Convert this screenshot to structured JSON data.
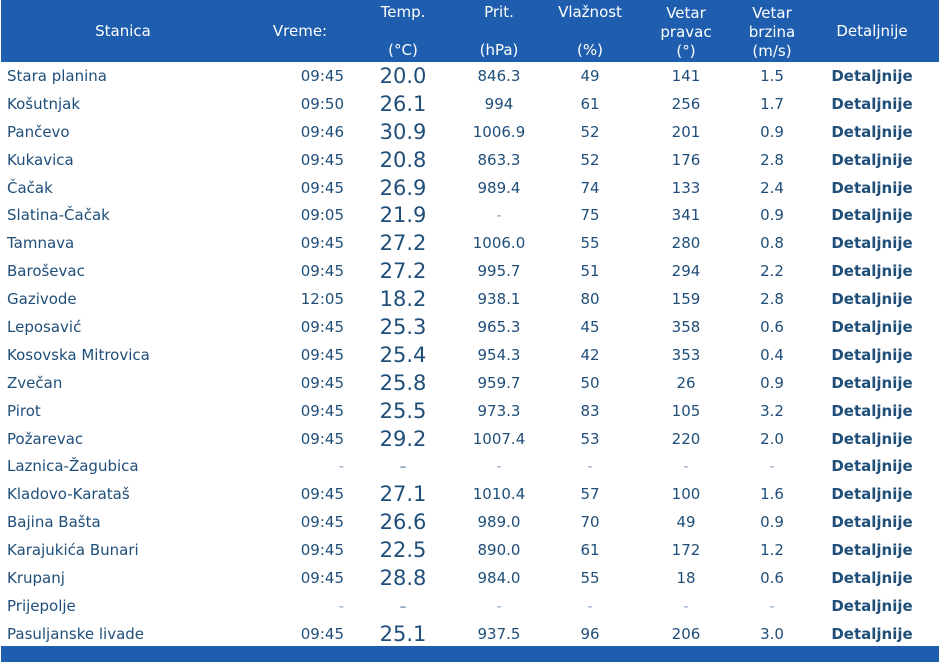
{
  "header": {
    "station": "Stanica",
    "time": "Vreme:",
    "temp_top": "Temp.",
    "temp_unit": "(°C)",
    "pressure_top": "Prit.",
    "pressure_unit": "(hPa)",
    "humidity_top": "Vlažnost",
    "humidity_unit": "(%)",
    "wind_dir_l1": "Vetar",
    "wind_dir_l2": "pravac",
    "wind_dir_l3": "(°)",
    "wind_speed_l1": "Vetar",
    "wind_speed_l2": "brzina",
    "wind_speed_l3": "(m/s)",
    "details": "Detaljnije"
  },
  "rows": [
    {
      "station": "Stara planina",
      "time": "09:45",
      "temp": "20.0",
      "pressure": "846.3",
      "humidity": "49",
      "wind_dir": "141",
      "wind_speed": "1.5",
      "details": "Detaljnije"
    },
    {
      "station": "Košutnjak",
      "time": "09:50",
      "temp": "26.1",
      "pressure": "994",
      "humidity": "61",
      "wind_dir": "256",
      "wind_speed": "1.7",
      "details": "Detaljnije"
    },
    {
      "station": "Pančevo",
      "time": "09:46",
      "temp": "30.9",
      "pressure": "1006.9",
      "humidity": "52",
      "wind_dir": "201",
      "wind_speed": "0.9",
      "details": "Detaljnije"
    },
    {
      "station": "Kukavica",
      "time": "09:45",
      "temp": "20.8",
      "pressure": "863.3",
      "humidity": "52",
      "wind_dir": "176",
      "wind_speed": "2.8",
      "details": "Detaljnije"
    },
    {
      "station": "Čačak",
      "time": "09:45",
      "temp": "26.9",
      "pressure": "989.4",
      "humidity": "74",
      "wind_dir": "133",
      "wind_speed": "2.4",
      "details": "Detaljnije"
    },
    {
      "station": "Slatina-Čačak",
      "time": "09:05",
      "temp": "21.9",
      "pressure": "-",
      "humidity": "75",
      "wind_dir": "341",
      "wind_speed": "0.9",
      "details": "Detaljnije"
    },
    {
      "station": "Tamnava",
      "time": "09:45",
      "temp": "27.2",
      "pressure": "1006.0",
      "humidity": "55",
      "wind_dir": "280",
      "wind_speed": "0.8",
      "details": "Detaljnije"
    },
    {
      "station": "Baroševac",
      "time": "09:45",
      "temp": "27.2",
      "pressure": "995.7",
      "humidity": "51",
      "wind_dir": "294",
      "wind_speed": "2.2",
      "details": "Detaljnije"
    },
    {
      "station": "Gazivode",
      "time": "12:05",
      "temp": "18.2",
      "pressure": "938.1",
      "humidity": "80",
      "wind_dir": "159",
      "wind_speed": "2.8",
      "details": "Detaljnije"
    },
    {
      "station": "Leposavić",
      "time": "09:45",
      "temp": "25.3",
      "pressure": "965.3",
      "humidity": "45",
      "wind_dir": "358",
      "wind_speed": "0.6",
      "details": "Detaljnije"
    },
    {
      "station": "Kosovska Mitrovica",
      "time": "09:45",
      "temp": "25.4",
      "pressure": "954.3",
      "humidity": "42",
      "wind_dir": "353",
      "wind_speed": "0.4",
      "details": "Detaljnije"
    },
    {
      "station": "Zvečan",
      "time": "09:45",
      "temp": "25.8",
      "pressure": "959.7",
      "humidity": "50",
      "wind_dir": "26",
      "wind_speed": "0.9",
      "details": "Detaljnije"
    },
    {
      "station": "Pirot",
      "time": "09:45",
      "temp": "25.5",
      "pressure": "973.3",
      "humidity": "83",
      "wind_dir": "105",
      "wind_speed": "3.2",
      "details": "Detaljnije"
    },
    {
      "station": "Požarevac",
      "time": "09:45",
      "temp": "29.2",
      "pressure": "1007.4",
      "humidity": "53",
      "wind_dir": "220",
      "wind_speed": "2.0",
      "details": "Detaljnije"
    },
    {
      "station": "Laznica-Žagubica",
      "time": "-",
      "temp": "-",
      "pressure": "-",
      "humidity": "-",
      "wind_dir": "-",
      "wind_speed": "-",
      "details": "Detaljnije"
    },
    {
      "station": "Kladovo-Karataš",
      "time": "09:45",
      "temp": "27.1",
      "pressure": "1010.4",
      "humidity": "57",
      "wind_dir": "100",
      "wind_speed": "1.6",
      "details": "Detaljnije"
    },
    {
      "station": "Bajina Bašta",
      "time": "09:45",
      "temp": "26.6",
      "pressure": "989.0",
      "humidity": "70",
      "wind_dir": "49",
      "wind_speed": "0.9",
      "details": "Detaljnije"
    },
    {
      "station": "Karajukića Bunari",
      "time": "09:45",
      "temp": "22.5",
      "pressure": "890.0",
      "humidity": "61",
      "wind_dir": "172",
      "wind_speed": "1.2",
      "details": "Detaljnije"
    },
    {
      "station": "Krupanj",
      "time": "09:45",
      "temp": "28.8",
      "pressure": "984.0",
      "humidity": "55",
      "wind_dir": "18",
      "wind_speed": "0.6",
      "details": "Detaljnije"
    },
    {
      "station": "Prijepolje",
      "time": "-",
      "temp": "-",
      "pressure": "-",
      "humidity": "-",
      "wind_dir": "-",
      "wind_speed": "-",
      "details": "Detaljnije"
    },
    {
      "station": "Pasuljanske livade",
      "time": "09:45",
      "temp": "25.1",
      "pressure": "937.5",
      "humidity": "96",
      "wind_dir": "206",
      "wind_speed": "3.0",
      "details": "Detaljnije"
    }
  ],
  "colors": {
    "header_bg": "#1f5eae",
    "header_text": "#ffffff",
    "cell_text": "#1f4e79"
  }
}
